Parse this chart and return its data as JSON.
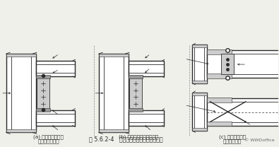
{
  "bg_color": "#f0f0eb",
  "line_color": "#2a2a2a",
  "gray_fill": "#999999",
  "light_gray": "#cccccc",
  "white": "#ffffff",
  "caption_a1": "(a) 梁翼缘板与悬臂",
  "caption_a2": "梁翼缘板的连接",
  "caption_b": "(b) 梁翼缘板与柱身的连接",
  "caption_c1": "(c) 梁翼缘板与柱",
  "caption_c2": "横隔板的连接",
  "figure_title": "图 5.6.2-4   框架柱与梁刚性连接节点形式",
  "watermark": "© WWDoffice"
}
